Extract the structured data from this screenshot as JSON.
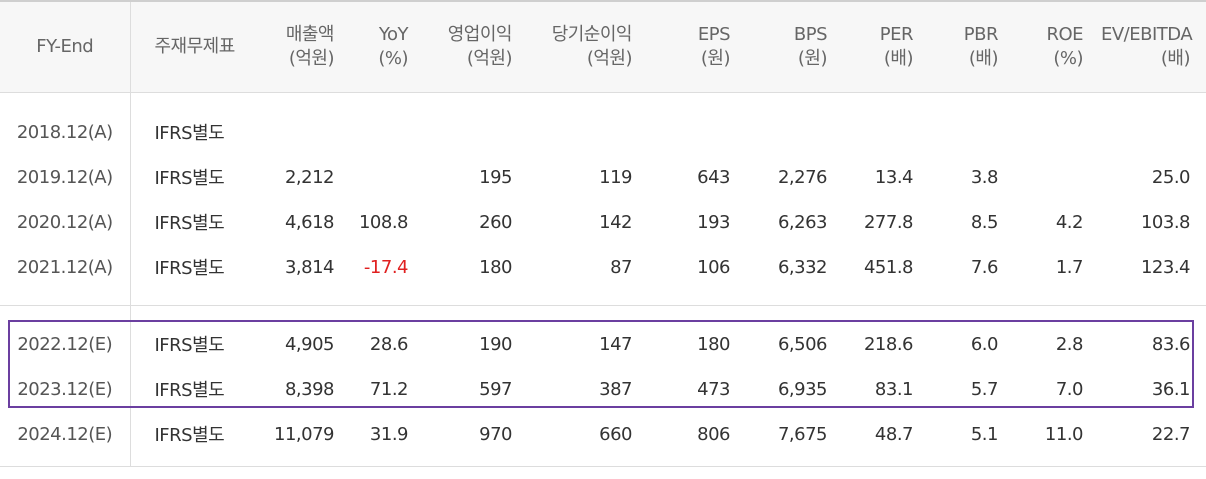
{
  "headers": {
    "fy_end": "FY-End",
    "fs_type": "주재무제표",
    "sales": "매출액",
    "sales_unit": "(억원)",
    "yoy": "YoY",
    "yoy_unit": "(%)",
    "op_income": "영업이익",
    "op_income_unit": "(억원)",
    "net_income": "당기순이익",
    "net_income_unit": "(억원)",
    "eps": "EPS",
    "eps_unit": "(원)",
    "bps": "BPS",
    "bps_unit": "(원)",
    "per": "PER",
    "per_unit": "(배)",
    "pbr": "PBR",
    "pbr_unit": "(배)",
    "roe": "ROE",
    "roe_unit": "(%)",
    "ev_ebitda": "EV/EBITDA",
    "ev_ebitda_unit": "(배)"
  },
  "rows": [
    {
      "fy": "2018.12(A)",
      "fs": "IFRS별도",
      "sales": "",
      "yoy": "",
      "op": "",
      "net": "",
      "eps": "",
      "bps": "",
      "per": "",
      "pbr": "",
      "roe": "",
      "ev": ""
    },
    {
      "fy": "2019.12(A)",
      "fs": "IFRS별도",
      "sales": "2,212",
      "yoy": "",
      "op": "195",
      "net": "119",
      "eps": "643",
      "bps": "2,276",
      "per": "13.4",
      "pbr": "3.8",
      "roe": "",
      "ev": "25.0"
    },
    {
      "fy": "2020.12(A)",
      "fs": "IFRS별도",
      "sales": "4,618",
      "yoy": "108.8",
      "op": "260",
      "net": "142",
      "eps": "193",
      "bps": "6,263",
      "per": "277.8",
      "pbr": "8.5",
      "roe": "4.2",
      "ev": "103.8"
    },
    {
      "fy": "2021.12(A)",
      "fs": "IFRS별도",
      "sales": "3,814",
      "yoy": "-17.4",
      "op": "180",
      "net": "87",
      "eps": "106",
      "bps": "6,332",
      "per": "451.8",
      "pbr": "7.6",
      "roe": "1.7",
      "ev": "123.4"
    },
    {
      "fy": "2022.12(E)",
      "fs": "IFRS별도",
      "sales": "4,905",
      "yoy": "28.6",
      "op": "190",
      "net": "147",
      "eps": "180",
      "bps": "6,506",
      "per": "218.6",
      "pbr": "6.0",
      "roe": "2.8",
      "ev": "83.6"
    },
    {
      "fy": "2023.12(E)",
      "fs": "IFRS별도",
      "sales": "8,398",
      "yoy": "71.2",
      "op": "597",
      "net": "387",
      "eps": "473",
      "bps": "6,935",
      "per": "83.1",
      "pbr": "5.7",
      "roe": "7.0",
      "ev": "36.1"
    },
    {
      "fy": "2024.12(E)",
      "fs": "IFRS별도",
      "sales": "11,079",
      "yoy": "31.9",
      "op": "970",
      "net": "660",
      "eps": "806",
      "bps": "7,675",
      "per": "48.7",
      "pbr": "5.1",
      "roe": "11.0",
      "ev": "22.7"
    }
  ],
  "colors": {
    "negative": "#e02020",
    "highlight_border": "#6b3fa0",
    "header_bg": "#f7f7f7"
  }
}
